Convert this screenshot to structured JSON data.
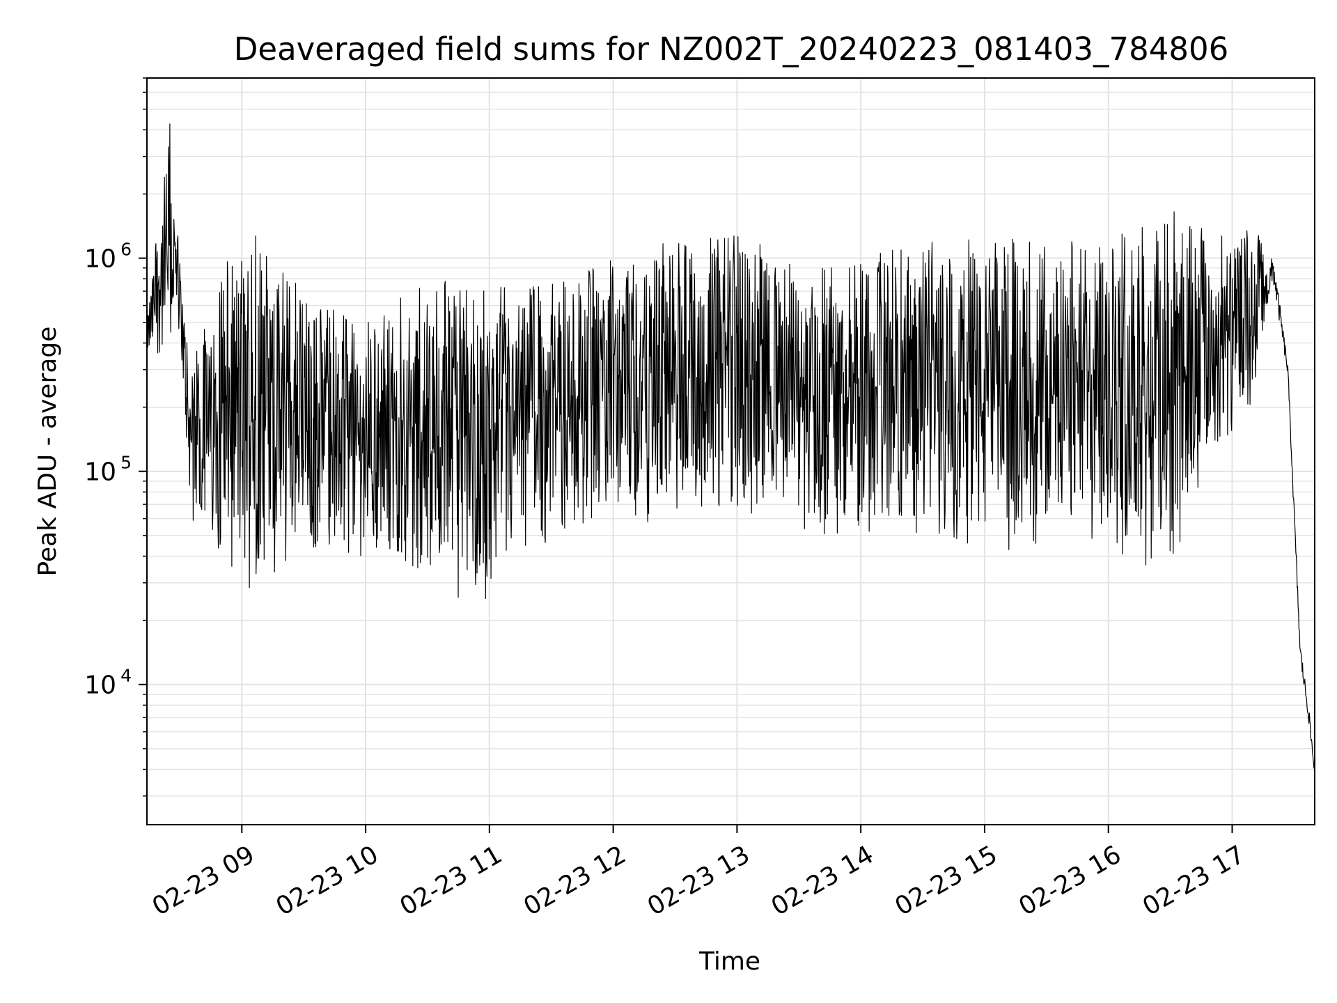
{
  "chart_data": {
    "type": "line",
    "title": "Deaveraged field sums for NZ002T_20240223_081403_784806",
    "xlabel": "Time",
    "ylabel": "Peak ADU - average",
    "yscale": "log",
    "xlim": [
      "02-23 08:14",
      "02-23 17:40"
    ],
    "ylim": [
      2200,
      7000000
    ],
    "grid": true,
    "x_ticks": [
      "02-23 09",
      "02-23 10",
      "02-23 11",
      "02-23 12",
      "02-23 13",
      "02-23 14",
      "02-23 15",
      "02-23 16",
      "02-23 17"
    ],
    "y_ticks": [
      {
        "base": "10",
        "exp": "4",
        "value": 10000
      },
      {
        "base": "10",
        "exp": "5",
        "value": 100000
      },
      {
        "base": "10",
        "exp": "6",
        "value": 1000000
      }
    ],
    "line_color": "#000000",
    "series": [
      {
        "description_points": "sampled envelope of the noisy trace (time, lower, upper)",
        "envelope": [
          {
            "x": "02-23 08:14",
            "low": 330000,
            "high": 540000
          },
          {
            "x": "02-23 08:25",
            "low": 300000,
            "high": 4900000
          },
          {
            "x": "02-23 08:30",
            "low": 450000,
            "high": 1000000
          },
          {
            "x": "02-23 08:35",
            "low": 60000,
            "high": 300000
          },
          {
            "x": "02-23 09:00",
            "low": 26000,
            "high": 1600000
          },
          {
            "x": "02-23 09:30",
            "low": 33000,
            "high": 700000
          },
          {
            "x": "02-23 10:00",
            "low": 40000,
            "high": 500000
          },
          {
            "x": "02-23 10:30",
            "low": 26000,
            "high": 800000
          },
          {
            "x": "02-23 11:00",
            "low": 22000,
            "high": 750000
          },
          {
            "x": "02-23 11:30",
            "low": 45000,
            "high": 800000
          },
          {
            "x": "02-23 12:00",
            "low": 50000,
            "high": 1000000
          },
          {
            "x": "02-23 12:30",
            "low": 55000,
            "high": 1300000
          },
          {
            "x": "02-23 13:00",
            "low": 60000,
            "high": 1400000
          },
          {
            "x": "02-23 13:30",
            "low": 48000,
            "high": 900000
          },
          {
            "x": "02-23 14:00",
            "low": 45000,
            "high": 1000000
          },
          {
            "x": "02-23 14:30",
            "low": 50000,
            "high": 1200000
          },
          {
            "x": "02-23 15:00",
            "low": 38000,
            "high": 1300000
          },
          {
            "x": "02-23 15:30",
            "low": 42000,
            "high": 1200000
          },
          {
            "x": "02-23 16:00",
            "low": 40000,
            "high": 1300000
          },
          {
            "x": "02-23 16:30",
            "low": 30000,
            "high": 1700000
          },
          {
            "x": "02-23 16:50",
            "low": 90000,
            "high": 1400000
          },
          {
            "x": "02-23 17:10",
            "low": 160000,
            "high": 1400000
          },
          {
            "x": "02-23 17:20",
            "low": 600000,
            "high": 1300000
          },
          {
            "x": "02-23 17:27",
            "low": 250000,
            "high": 350000
          },
          {
            "x": "02-23 17:33",
            "low": 11000,
            "high": 18000
          },
          {
            "x": "02-23 17:37",
            "low": 6000,
            "high": 9000
          },
          {
            "x": "02-23 17:40",
            "low": 3000,
            "high": 5000
          }
        ]
      }
    ]
  }
}
